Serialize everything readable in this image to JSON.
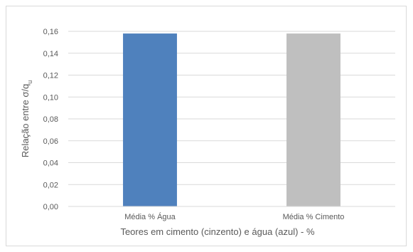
{
  "chart_data": {
    "type": "bar",
    "categories": [
      "Média % Água",
      "Média % Cimento"
    ],
    "values": [
      0.158,
      0.158
    ],
    "bar_colors": [
      "#4f81bd",
      "#bfbfbf"
    ],
    "xlabel": "Teores em cimento (cinzento) e água (azul) - %",
    "ylabel_main": "Relação entre σ/q",
    "ylabel_sub": "u",
    "ylim": [
      0,
      0.16
    ],
    "yticks": [
      "0,00",
      "0,02",
      "0,04",
      "0,06",
      "0,08",
      "0,10",
      "0,12",
      "0,14",
      "0,16"
    ],
    "grid": true
  }
}
